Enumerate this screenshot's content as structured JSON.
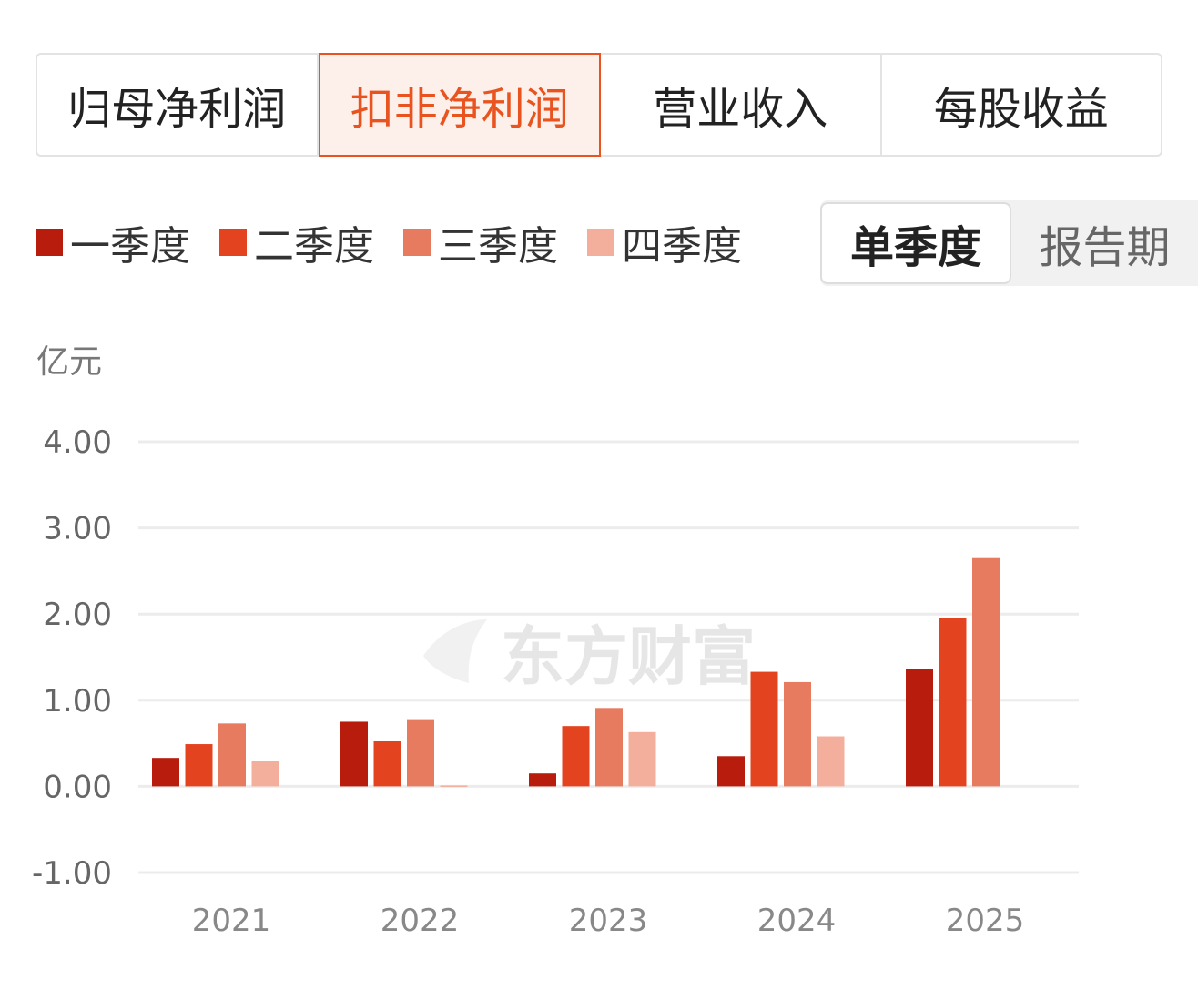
{
  "tabs": [
    {
      "label": "归母净利润",
      "active": false
    },
    {
      "label": "扣非净利润",
      "active": true
    },
    {
      "label": "营业收入",
      "active": false
    },
    {
      "label": "每股收益",
      "active": false
    }
  ],
  "period_toggle": {
    "single_quarter": "单季度",
    "report_period": "报告期",
    "selected": "单季度"
  },
  "unit_label": "亿元",
  "watermark": "东方财富",
  "colors": {
    "accent": "#e8531f",
    "q1": "#b81c0c",
    "q2": "#e4431f",
    "q3": "#e67b5f",
    "q4": "#f4ae9c"
  },
  "chart_data": {
    "type": "bar",
    "categories": [
      "2021",
      "2022",
      "2023",
      "2024",
      "2025"
    ],
    "series": [
      {
        "name": "一季度",
        "values": [
          0.33,
          0.75,
          0.15,
          0.35,
          1.36
        ]
      },
      {
        "name": "二季度",
        "values": [
          0.49,
          0.53,
          0.7,
          1.33,
          1.95
        ]
      },
      {
        "name": "三季度",
        "values": [
          0.73,
          0.78,
          0.91,
          1.21,
          2.65
        ]
      },
      {
        "name": "四季度",
        "values": [
          0.3,
          0.01,
          0.63,
          0.58,
          null
        ]
      }
    ],
    "ylabel": "亿元",
    "yticks": [
      "4.00",
      "3.00",
      "2.00",
      "1.00",
      "0.00",
      "-1.00"
    ],
    "ylim": [
      -1,
      4
    ],
    "grid": true,
    "legend_position": "top-left"
  }
}
